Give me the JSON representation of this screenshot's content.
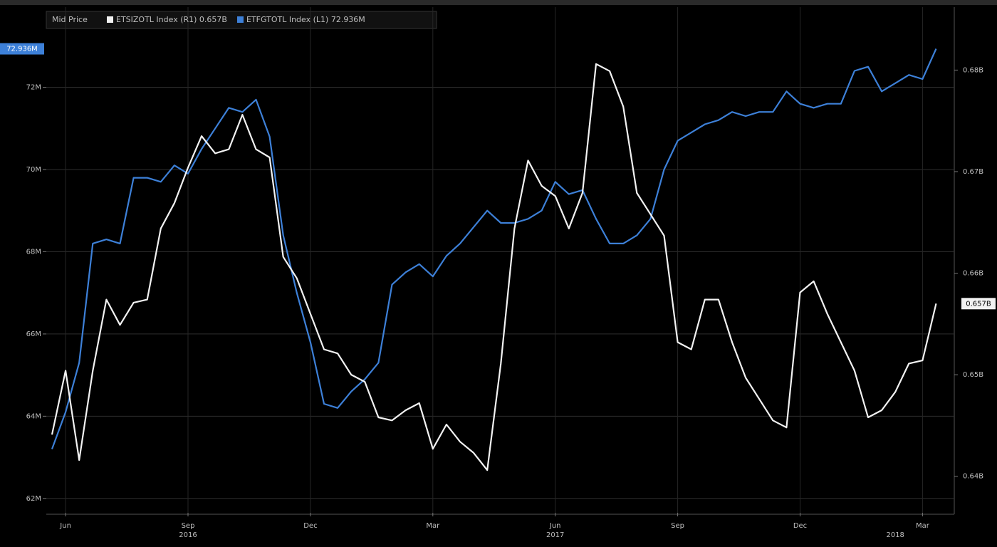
{
  "chart_data": {
    "type": "line",
    "legend_title": "Mid Price",
    "categories": [
      null,
      "Jun",
      null,
      null,
      null,
      null,
      null,
      null,
      null,
      null,
      "Sep",
      null,
      null,
      null,
      null,
      null,
      null,
      null,
      null,
      "Dec",
      null,
      null,
      null,
      null,
      null,
      null,
      null,
      null,
      "Mar",
      null,
      null,
      null,
      null,
      null,
      null,
      null,
      null,
      "Jun",
      null,
      null,
      null,
      null,
      null,
      null,
      null,
      null,
      "Sep",
      null,
      null,
      null,
      null,
      null,
      null,
      null,
      null,
      "Dec",
      null,
      null,
      null,
      null,
      null,
      null,
      null,
      null,
      "Mar",
      null
    ],
    "category_years": [
      null,
      null,
      null,
      null,
      null,
      null,
      null,
      null,
      null,
      null,
      "2016",
      null,
      null,
      null,
      null,
      null,
      null,
      null,
      null,
      null,
      null,
      null,
      null,
      null,
      null,
      null,
      null,
      null,
      null,
      null,
      null,
      null,
      null,
      null,
      null,
      null,
      null,
      "2017",
      null,
      null,
      null,
      null,
      null,
      null,
      null,
      null,
      null,
      null,
      null,
      null,
      null,
      null,
      null,
      null,
      null,
      null,
      null,
      null,
      null,
      null,
      null,
      null,
      "2018",
      null,
      null,
      null
    ],
    "series": [
      {
        "name": "ETSIZOTL Index (R1) 0.657B",
        "color": "#f2f2f2",
        "axis": "y2",
        "values": [
          0.6441,
          0.6504,
          0.6416,
          0.6504,
          0.6574,
          0.6549,
          0.6571,
          0.6574,
          0.6644,
          0.6669,
          0.6704,
          0.6735,
          0.6718,
          0.6722,
          0.6756,
          0.6722,
          0.6714,
          0.6616,
          0.6595,
          0.656,
          0.6525,
          0.6521,
          0.65,
          0.6493,
          0.6458,
          0.6455,
          0.6465,
          0.6472,
          0.6427,
          0.6451,
          0.6434,
          0.6423,
          0.6406,
          0.6511,
          0.6644,
          0.6711,
          0.6686,
          0.6676,
          0.6644,
          0.6679,
          0.6806,
          0.6799,
          0.6764,
          0.6679,
          0.6658,
          0.6637,
          0.6532,
          0.6525,
          0.6574,
          0.6574,
          0.6532,
          0.6497,
          0.6476,
          0.6455,
          0.6448,
          0.6581,
          0.6592,
          0.656,
          0.6532,
          0.6504,
          0.6458,
          0.6465,
          0.6483,
          0.6511,
          0.6514,
          0.657
        ],
        "value_labels": [
          null,
          null,
          null,
          null,
          null,
          null,
          null,
          null,
          null,
          null,
          null,
          null,
          null,
          null,
          null,
          null,
          null,
          null,
          null,
          null,
          null,
          null,
          null,
          null,
          null,
          null,
          null,
          null,
          null,
          null,
          null,
          null,
          null,
          null,
          null,
          null,
          null,
          null,
          null,
          null,
          null,
          null,
          null,
          null,
          null,
          null,
          null,
          null,
          null,
          null,
          null,
          null,
          null,
          null,
          null,
          null,
          null,
          null,
          null,
          null,
          null,
          null,
          null,
          null,
          null,
          "0.657B"
        ]
      },
      {
        "name": "ETFGTOTL Index (L1) 72.936M",
        "color": "#3d80d8",
        "values": [
          63.2,
          64.1,
          65.3,
          68.2,
          68.3,
          68.2,
          69.8,
          69.8,
          69.7,
          70.1,
          69.9,
          70.5,
          71.0,
          71.5,
          71.4,
          71.7,
          70.8,
          68.4,
          67.0,
          65.8,
          64.3,
          64.2,
          64.6,
          64.9,
          65.3,
          67.2,
          67.5,
          67.7,
          67.4,
          67.9,
          68.2,
          68.6,
          69.0,
          68.7,
          68.7,
          68.8,
          69.0,
          69.7,
          69.4,
          69.5,
          68.8,
          68.2,
          68.2,
          68.4,
          68.8,
          70.0,
          70.7,
          70.9,
          71.1,
          71.2,
          71.4,
          71.3,
          71.4,
          71.4,
          71.9,
          71.6,
          71.5,
          71.6,
          71.6,
          72.4,
          72.5,
          71.9,
          72.1,
          72.3,
          72.2,
          72.936
        ],
        "value_labels": [
          null,
          null,
          null,
          null,
          null,
          null,
          null,
          null,
          null,
          null,
          null,
          null,
          null,
          null,
          null,
          null,
          null,
          null,
          null,
          null,
          null,
          null,
          null,
          null,
          null,
          null,
          null,
          null,
          null,
          null,
          null,
          null,
          null,
          null,
          null,
          null,
          null,
          null,
          null,
          null,
          null,
          null,
          null,
          null,
          null,
          null,
          null,
          null,
          null,
          null,
          null,
          null,
          null,
          null,
          null,
          null,
          null,
          null,
          null,
          null,
          null,
          null,
          null,
          null,
          null,
          "72.936M"
        ]
      }
    ],
    "ylim": [
      61.65,
      73.95
    ],
    "yticks": [
      {
        "value": 62,
        "label": "62M"
      },
      {
        "value": 64,
        "label": "64M"
      },
      {
        "value": 66,
        "label": "66M"
      },
      {
        "value": 68,
        "label": "68M"
      },
      {
        "value": 70,
        "label": "70M"
      },
      {
        "value": 72,
        "label": "72M"
      }
    ],
    "y2lim": [
      0.6364,
      0.6862
    ],
    "y2ticks": [
      {
        "value": 0.64,
        "label": "0.64B"
      },
      {
        "value": 0.65,
        "label": "0.65B"
      },
      {
        "value": 0.66,
        "label": "0.66B"
      },
      {
        "value": 0.67,
        "label": "0.67B"
      },
      {
        "value": 0.68,
        "label": "0.68B"
      }
    ],
    "grid": true
  }
}
